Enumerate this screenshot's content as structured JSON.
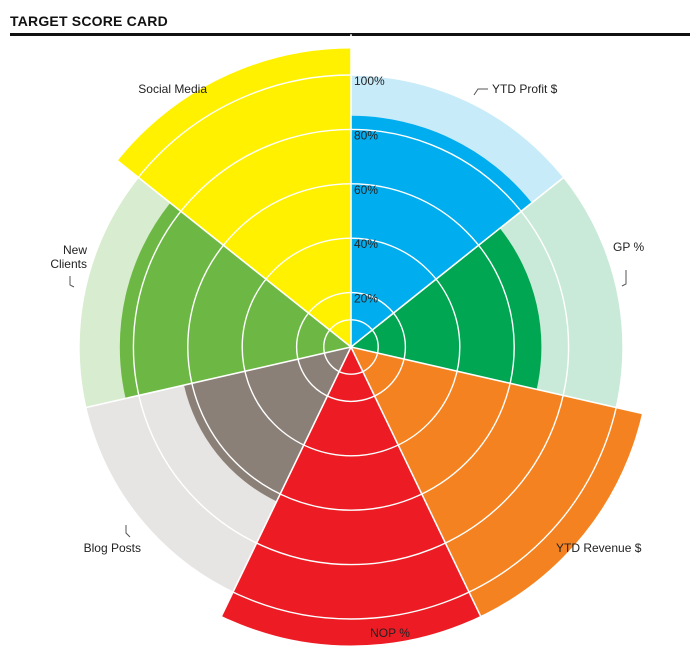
{
  "header": {
    "title": "TARGET SCORE CARD"
  },
  "chart_data": {
    "type": "polar-area",
    "title": "TARGET SCORE CARD",
    "radial_axis": {
      "min": 0,
      "max": 100,
      "ticks": [
        "20%",
        "40%",
        "60%",
        "80%",
        "100%"
      ]
    },
    "slices": [
      {
        "name": "YTD Profit $",
        "target": 100,
        "value": 85,
        "color": "#00adee",
        "target_color": "#c8ebfa"
      },
      {
        "name": "GP %",
        "target": 100,
        "value": 70,
        "color": "#00a651",
        "target_color": "#c9ead8"
      },
      {
        "name": "YTD Revenue $",
        "target": 110,
        "value": 110,
        "color": "#f58220",
        "target_color": "#f58220"
      },
      {
        "name": "NOP %",
        "target": 110,
        "value": 110,
        "color": "#ed1c24",
        "target_color": "#ed1c24"
      },
      {
        "name": "Blog Posts",
        "target": 100,
        "value": 63,
        "color": "#8b8078",
        "target_color": "#e6e5e4"
      },
      {
        "name": "New Clients",
        "target": 100,
        "value": 85,
        "color": "#6db844",
        "target_color": "#d8ecd0"
      },
      {
        "name": "Social Media",
        "target": 110,
        "value": 110,
        "color": "#fff100",
        "target_color": "#fff100"
      }
    ]
  }
}
